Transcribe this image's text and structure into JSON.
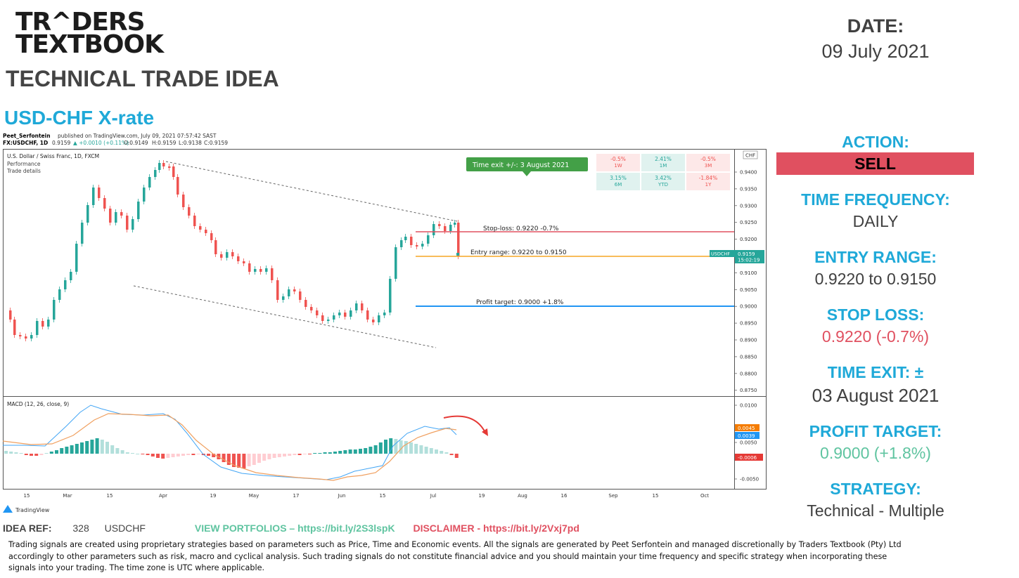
{
  "brand": {
    "line1": "TR^DERS",
    "line2": "TEXTBOOK"
  },
  "subtitle": "TECHNICAL TRADE IDEA",
  "pair_title": "USD-CHF X-rate",
  "date": {
    "label": "DATE:",
    "value": "09 July 2021"
  },
  "panel": {
    "action_label": "ACTION:",
    "action_value": "SELL",
    "time_frequency_label": "TIME FREQUENCY:",
    "time_frequency_value": "DAILY",
    "entry_range_label": "ENTRY RANGE:",
    "entry_range_value": "0.9220 to 0.9150",
    "stop_loss_label": "STOP LOSS:",
    "stop_loss_value": "0.9220 (-0.7%)",
    "time_exit_label": "TIME EXIT: ±",
    "time_exit_value": "03 August 2021",
    "profit_target_label": "PROFIT TARGET:",
    "profit_target_value": "0.9000 (+1.8%)",
    "strategy_label": "STRATEGY:",
    "strategy_value": "Technical - Multiple"
  },
  "colors": {
    "accent": "#1fa9d8",
    "sell": "#e05060",
    "stop_loss": "#e05060",
    "profit": "#5fc4a0",
    "up": "#26a69a",
    "down": "#ef5350",
    "entry_line": "#f5a623",
    "target_line": "#2196f3"
  },
  "chart": {
    "publish_author": "Peet_Serfontein",
    "publish_text": "published on TradingView.com, July 09, 2021 07:57:42 SAST",
    "symbol": "FX:USDCHF, 1D",
    "ohlc_close": "0.9159",
    "ohlc_change": "▲ +0.0010 (+0.11%)",
    "ohlc_o": "O:0.9149",
    "ohlc_h": "H:0.9159",
    "ohlc_l": "L:0.9138",
    "ohlc_c": "C:0.9159",
    "instrument": "U.S. Dollar / Swiss Franc, 1D, FXCM",
    "legend_performance": "Performance",
    "legend_trade_details": "Trade details",
    "currency": "CHF",
    "time_exit_note": "Time exit +/-: 3 August 2021",
    "stop_loss_note": "Stop-loss: 0.9220 -0.7%",
    "entry_note": "Entry range: 0.9220 to 0.9150",
    "profit_note": "Profit target: 0.9000 +1.8%",
    "price_tag_symbol": "USDCHF",
    "price_tag_value": "0.9159",
    "price_tag_timer": "15:02:19",
    "macd_label": "MACD (12, 26, close, 9)",
    "macd_tag1": "0.0045",
    "macd_tag2": "0.0039",
    "macd_tag3": "-0.0006",
    "watermark": "TradingView",
    "price_ticks": [
      "0.9400",
      "0.9350",
      "0.9300",
      "0.9250",
      "0.9200",
      "0.9150",
      "0.9100",
      "0.9050",
      "0.9000",
      "0.8950",
      "0.8900",
      "0.8850",
      "0.8800",
      "0.8750"
    ],
    "macd_ticks": [
      "0.0100",
      "0.0050",
      "-0.0050"
    ],
    "date_ticks": [
      "15",
      "Mar",
      "15",
      "Apr",
      "19",
      "May",
      "17",
      "Jun",
      "15",
      "Jul",
      "19",
      "Aug",
      "16",
      "Sep",
      "15",
      "Oct"
    ],
    "performance": [
      {
        "value": "-0.5%",
        "period": "1W",
        "tone": "down"
      },
      {
        "value": "2.41%",
        "period": "1M",
        "tone": "up"
      },
      {
        "value": "-0.5%",
        "period": "3M",
        "tone": "down"
      },
      {
        "value": "3.15%",
        "period": "6M",
        "tone": "up"
      },
      {
        "value": "3.42%",
        "period": "YTD",
        "tone": "up"
      },
      {
        "value": "-1.84%",
        "period": "1Y",
        "tone": "down"
      }
    ]
  },
  "footer": {
    "idea_ref_label": "IDEA REF:",
    "idea_ref_num": "328",
    "idea_ref_pair": "USDCHF",
    "portfolios": "VIEW PORTFOLIOS – https://bit.ly/2S3lspK",
    "disclaimer_link": "DISCLAIMER -  https://bit.ly/2Vxj7pd",
    "disclaimer_text": "Trading signals are created using proprietary strategies based on parameters such as Price, Time and Economic events. All the signals are generated by Peet Serfontein and managed discretionally by Traders Textbook (Pty) Ltd accordingly to other parameters such as risk, macro and cyclical analysis. Such trading signals do not constitute financial advice and you should maintain your time frequency and specific strategy when incorporating these signals into your trading. The time zone is UTC where applicable."
  }
}
